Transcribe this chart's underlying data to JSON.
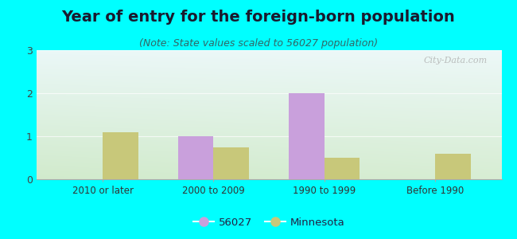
{
  "title": "Year of entry for the foreign-born population",
  "subtitle": "(Note: State values scaled to 56027 population)",
  "categories": [
    "2010 or later",
    "2000 to 2009",
    "1990 to 1999",
    "Before 1990"
  ],
  "values_56027": [
    0,
    1.0,
    2.0,
    0
  ],
  "values_minnesota": [
    1.1,
    0.75,
    0.5,
    0.6
  ],
  "color_56027": "#c9a0dc",
  "color_minnesota": "#c8c87a",
  "background_color": "#00ffff",
  "ylim": [
    0,
    3
  ],
  "yticks": [
    0,
    1,
    2,
    3
  ],
  "bar_width": 0.32,
  "title_fontsize": 14,
  "subtitle_fontsize": 9,
  "title_color": "#1a1a2e",
  "subtitle_color": "#336666",
  "legend_label_56027": "56027",
  "legend_label_minnesota": "Minnesota",
  "watermark": "City-Data.com"
}
